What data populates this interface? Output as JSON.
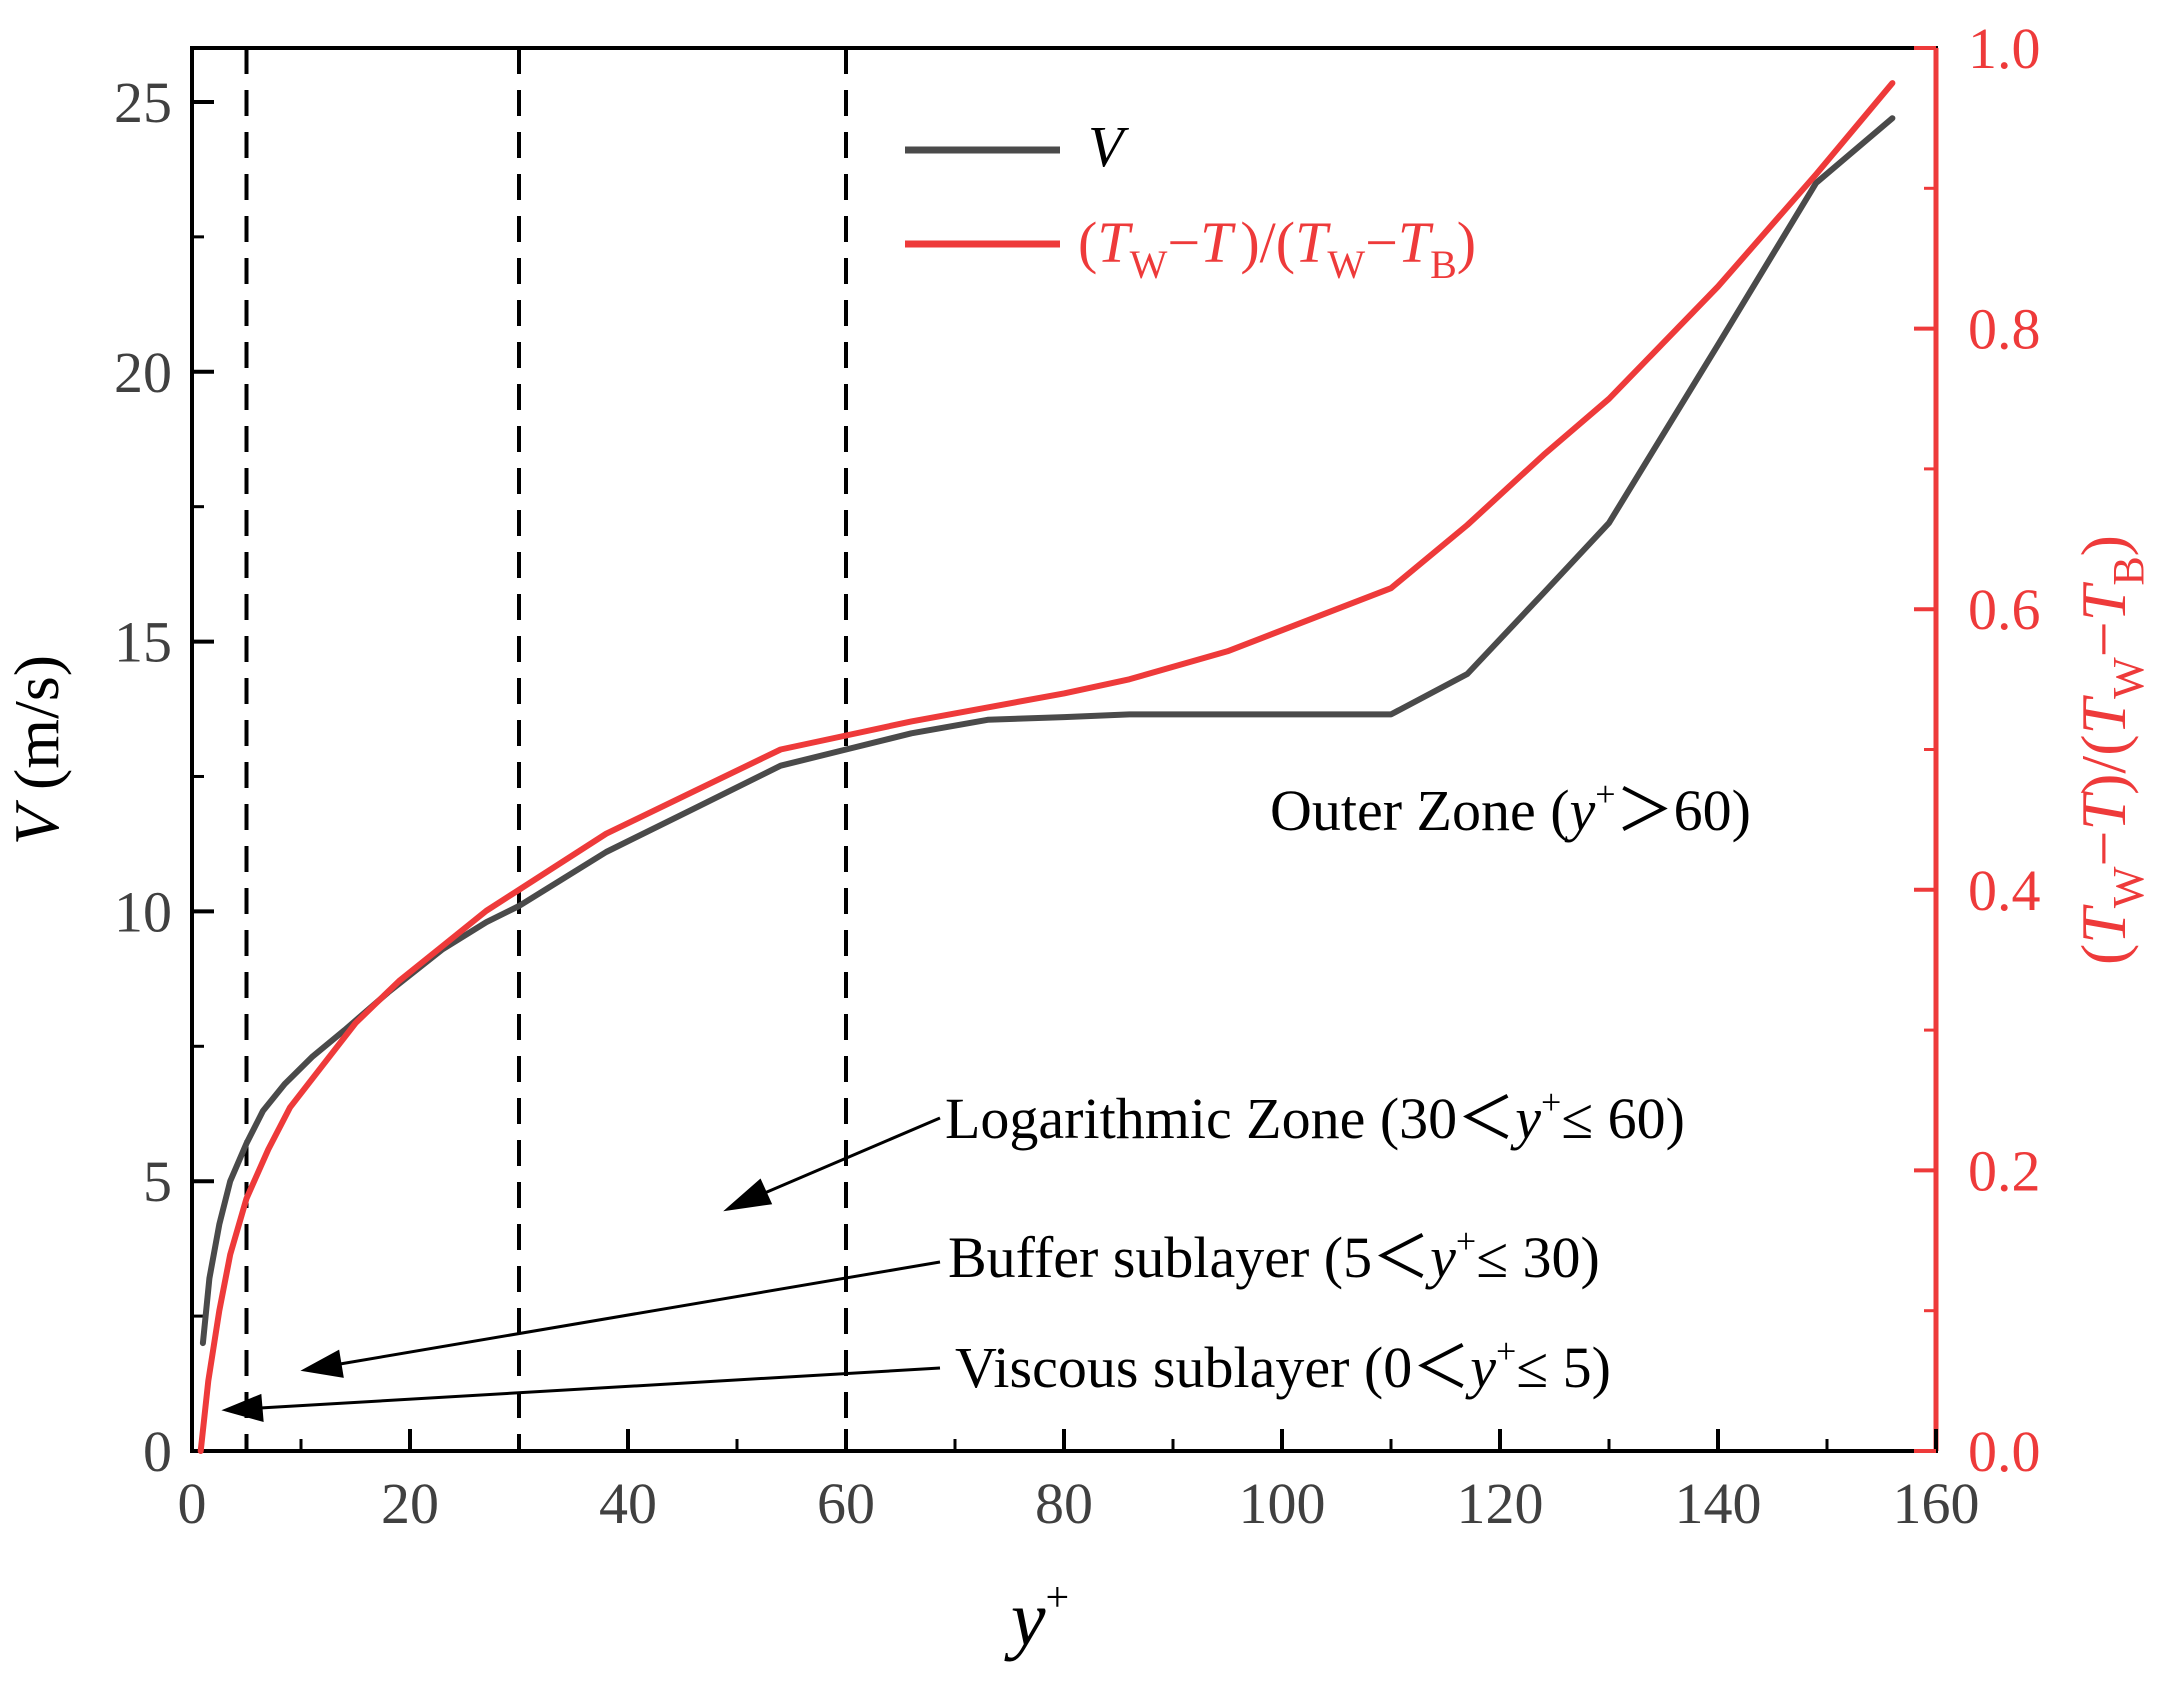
{
  "colors": {
    "velocity": "#4a4a4a",
    "temperature": "#ee3a3a",
    "axis_left": "#000000",
    "axis_right": "#ee3a3a",
    "divider": "#000000"
  },
  "legend": {
    "velocity": {
      "label": "V"
    },
    "temperature": {
      "open": "(",
      "T1": "T",
      "s1": "W",
      "minus1": "−",
      "T2": "T",
      "mid": ")/(",
      "T3": "T",
      "s2": "W",
      "minus2": "−",
      "T4": "T",
      "s3": "B",
      "close": ")"
    }
  },
  "annotations": {
    "outer": {
      "pre": "Outer Zone (",
      "y": "y",
      "sup": "+",
      "post": "＞60)"
    },
    "log": {
      "pre": "Logarithmic Zone (30＜",
      "y": "y",
      "sup": "+",
      "post": "≤ 60)"
    },
    "buffer": {
      "pre": "Buffer sublayer (5＜",
      "y": "y",
      "sup": "+",
      "post": "≤ 30)"
    },
    "viscous": {
      "pre": "Viscous sublayer (0＜",
      "y": "y",
      "sup": "+",
      "post": "≤ 5)"
    }
  },
  "chart_data": {
    "type": "line",
    "xlabel": {
      "main": "y",
      "sup": "+"
    },
    "ylabel": {
      "V": "V",
      "unit": " (m/s)"
    },
    "y2label": {
      "open": "(",
      "T1": "T",
      "s1": "W",
      "minus1": "−",
      "T2": "T",
      "mid": ")/(",
      "T3": "T",
      "s2": "W",
      "minus2": "−",
      "T4": "T",
      "s3": "B",
      "close": ")"
    },
    "xlim": [
      0,
      160
    ],
    "ylim": [
      0,
      26
    ],
    "y2lim": [
      0,
      1.0
    ],
    "x_ticks": [
      "0",
      "20",
      "40",
      "60",
      "80",
      "100",
      "120",
      "140",
      "160"
    ],
    "y_ticks": [
      "0",
      "5",
      "10",
      "15",
      "20",
      "25"
    ],
    "y2_ticks": [
      "0.0",
      "0.2",
      "0.4",
      "0.6",
      "0.8",
      "1.0"
    ],
    "dividers": [
      5,
      30,
      60
    ],
    "series": [
      {
        "name": "V",
        "axis": "left",
        "x": [
          1,
          1.6,
          2.5,
          3.5,
          5,
          6.5,
          8.5,
          11,
          14,
          18,
          23,
          27,
          30,
          38,
          46,
          54,
          60,
          66,
          73,
          80,
          86,
          95,
          110,
          117,
          124,
          130,
          140,
          149,
          156
        ],
        "y": [
          2.0,
          3.2,
          4.2,
          5.0,
          5.7,
          6.3,
          6.8,
          7.3,
          7.8,
          8.5,
          9.3,
          9.8,
          10.1,
          11.1,
          11.9,
          12.7,
          13.0,
          13.3,
          13.55,
          13.6,
          13.65,
          13.65,
          13.65,
          14.4,
          15.9,
          17.2,
          20.5,
          23.5,
          24.7
        ]
      },
      {
        "name": "(TW−T)/(TW−TB)",
        "axis": "right",
        "x": [
          0.8,
          1.5,
          2.5,
          3.5,
          5,
          7,
          9,
          12,
          15,
          19,
          23,
          27,
          30,
          38,
          46,
          54,
          60,
          66,
          73,
          80,
          86,
          95,
          110,
          117,
          124,
          130,
          140,
          149,
          156
        ],
        "y": [
          0.0,
          0.05,
          0.1,
          0.14,
          0.18,
          0.215,
          0.245,
          0.275,
          0.305,
          0.335,
          0.36,
          0.385,
          0.4,
          0.44,
          0.47,
          0.5,
          0.51,
          0.52,
          0.53,
          0.54,
          0.55,
          0.57,
          0.615,
          0.66,
          0.71,
          0.75,
          0.83,
          0.91,
          0.975
        ]
      }
    ]
  }
}
